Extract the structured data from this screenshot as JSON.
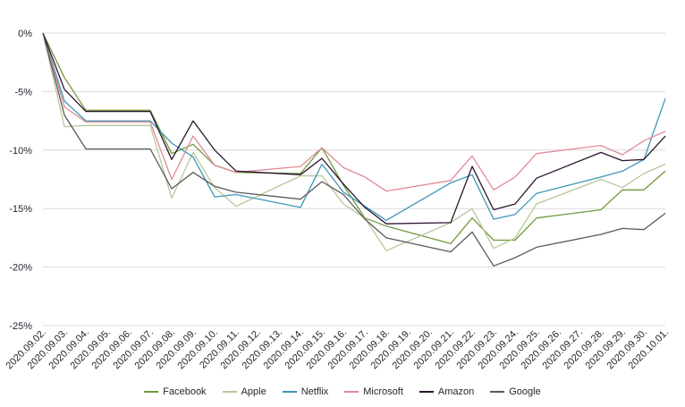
{
  "chart_data": {
    "type": "line",
    "title": "",
    "xlabel": "",
    "ylabel": "",
    "ylim": [
      -25,
      0
    ],
    "yticks": [
      0,
      -5,
      -10,
      -15,
      -20,
      -25
    ],
    "ytick_labels": [
      "0%",
      "-5%",
      "-10%",
      "-15%",
      "-20%",
      "-25%"
    ],
    "grid": "horizontal",
    "legend_position": "bottom",
    "x": [
      "2020.09.02.",
      "2020.09.03.",
      "2020.09.04.",
      "2020.09.05.",
      "2020.09.06.",
      "2020.09.07.",
      "2020.09.08.",
      "2020.09.09.",
      "2020.09.10.",
      "2020.09.11.",
      "2020.09.12.",
      "2020.09.13.",
      "2020.09.14.",
      "2020.09.15.",
      "2020.09.16.",
      "2020.09.17.",
      "2020.09.18.",
      "2020.09.19.",
      "2020.09.20.",
      "2020.09.21.",
      "2020.09.22.",
      "2020.09.23.",
      "2020.09.24.",
      "2020.09.25.",
      "2020.09.26.",
      "2020.09.27.",
      "2020.09.28.",
      "2020.09.29.",
      "2020.09.30.",
      "2020.10.01."
    ],
    "series": [
      {
        "name": "Facebook",
        "color": "#6e9a3c",
        "points": [
          [
            "2020.09.02.",
            0
          ],
          [
            "2020.09.03.",
            -3.8
          ],
          [
            "2020.09.04.",
            -6.6
          ],
          [
            "2020.09.07.",
            -6.6
          ],
          [
            "2020.09.08.",
            -10.3
          ],
          [
            "2020.09.09.",
            -9.5
          ],
          [
            "2020.09.10.",
            -11.3
          ],
          [
            "2020.09.11.",
            -11.9
          ],
          [
            "2020.09.14.",
            -12.0
          ],
          [
            "2020.09.15.",
            -9.8
          ],
          [
            "2020.09.16.",
            -13.0
          ],
          [
            "2020.09.17.",
            -15.8
          ],
          [
            "2020.09.18.",
            -16.5
          ],
          [
            "2020.09.21.",
            -18.0
          ],
          [
            "2020.09.22.",
            -15.8
          ],
          [
            "2020.09.23.",
            -17.7
          ],
          [
            "2020.09.24.",
            -17.7
          ],
          [
            "2020.09.25.",
            -15.8
          ],
          [
            "2020.09.28.",
            -15.1
          ],
          [
            "2020.09.29.",
            -13.4
          ],
          [
            "2020.09.30.",
            -13.4
          ],
          [
            "2020.10.01.",
            -11.8
          ]
        ]
      },
      {
        "name": "Apple",
        "color": "#b8c79a",
        "points": [
          [
            "2020.09.02.",
            0
          ],
          [
            "2020.09.03.",
            -8.0
          ],
          [
            "2020.09.04.",
            -7.9
          ],
          [
            "2020.09.07.",
            -7.9
          ],
          [
            "2020.09.08.",
            -14.1
          ],
          [
            "2020.09.09.",
            -10.2
          ],
          [
            "2020.09.10.",
            -13.2
          ],
          [
            "2020.09.11.",
            -14.8
          ],
          [
            "2020.09.14.",
            -12.2
          ],
          [
            "2020.09.15.",
            -12.2
          ],
          [
            "2020.09.16.",
            -14.6
          ],
          [
            "2020.09.17.",
            -15.8
          ],
          [
            "2020.09.18.",
            -18.6
          ],
          [
            "2020.09.21.",
            -16.2
          ],
          [
            "2020.09.22.",
            -15.0
          ],
          [
            "2020.09.23.",
            -18.4
          ],
          [
            "2020.09.24.",
            -17.5
          ],
          [
            "2020.09.25.",
            -14.6
          ],
          [
            "2020.09.28.",
            -12.5
          ],
          [
            "2020.09.29.",
            -13.2
          ],
          [
            "2020.09.30.",
            -12.0
          ],
          [
            "2020.10.01.",
            -11.2
          ]
        ]
      },
      {
        "name": "Netflix",
        "color": "#3e96b8",
        "points": [
          [
            "2020.09.02.",
            0
          ],
          [
            "2020.09.03.",
            -5.8
          ],
          [
            "2020.09.04.",
            -7.5
          ],
          [
            "2020.09.07.",
            -7.5
          ],
          [
            "2020.09.08.",
            -9.4
          ],
          [
            "2020.09.09.",
            -10.6
          ],
          [
            "2020.09.10.",
            -14.0
          ],
          [
            "2020.09.11.",
            -13.8
          ],
          [
            "2020.09.14.",
            -14.9
          ],
          [
            "2020.09.15.",
            -11.2
          ],
          [
            "2020.09.16.",
            -13.6
          ],
          [
            "2020.09.17.",
            -14.8
          ],
          [
            "2020.09.18.",
            -16.0
          ],
          [
            "2020.09.21.",
            -12.8
          ],
          [
            "2020.09.22.",
            -12.1
          ],
          [
            "2020.09.23.",
            -15.9
          ],
          [
            "2020.09.24.",
            -15.5
          ],
          [
            "2020.09.25.",
            -13.7
          ],
          [
            "2020.09.28.",
            -12.3
          ],
          [
            "2020.09.29.",
            -11.8
          ],
          [
            "2020.09.30.",
            -10.8
          ],
          [
            "2020.10.01.",
            -5.6
          ]
        ]
      },
      {
        "name": "Microsoft",
        "color": "#e08a96",
        "points": [
          [
            "2020.09.02.",
            0
          ],
          [
            "2020.09.03.",
            -6.3
          ],
          [
            "2020.09.04.",
            -7.6
          ],
          [
            "2020.09.07.",
            -7.6
          ],
          [
            "2020.09.08.",
            -12.5
          ],
          [
            "2020.09.09.",
            -8.8
          ],
          [
            "2020.09.10.",
            -11.3
          ],
          [
            "2020.09.11.",
            -11.9
          ],
          [
            "2020.09.14.",
            -11.4
          ],
          [
            "2020.09.15.",
            -9.8
          ],
          [
            "2020.09.16.",
            -11.5
          ],
          [
            "2020.09.17.",
            -12.3
          ],
          [
            "2020.09.18.",
            -13.5
          ],
          [
            "2020.09.21.",
            -12.6
          ],
          [
            "2020.09.22.",
            -10.5
          ],
          [
            "2020.09.23.",
            -13.4
          ],
          [
            "2020.09.24.",
            -12.3
          ],
          [
            "2020.09.25.",
            -10.3
          ],
          [
            "2020.09.28.",
            -9.6
          ],
          [
            "2020.09.29.",
            -10.4
          ],
          [
            "2020.09.30.",
            -9.2
          ],
          [
            "2020.10.01.",
            -8.4
          ]
        ]
      },
      {
        "name": "Amazon",
        "color": "#2c1430",
        "points": [
          [
            "2020.09.02.",
            0
          ],
          [
            "2020.09.03.",
            -4.8
          ],
          [
            "2020.09.04.",
            -6.7
          ],
          [
            "2020.09.07.",
            -6.7
          ],
          [
            "2020.09.08.",
            -10.8
          ],
          [
            "2020.09.09.",
            -7.5
          ],
          [
            "2020.09.10.",
            -10.0
          ],
          [
            "2020.09.11.",
            -11.8
          ],
          [
            "2020.09.14.",
            -12.1
          ],
          [
            "2020.09.15.",
            -10.7
          ],
          [
            "2020.09.16.",
            -12.9
          ],
          [
            "2020.09.17.",
            -14.9
          ],
          [
            "2020.09.18.",
            -16.3
          ],
          [
            "2020.09.21.",
            -16.2
          ],
          [
            "2020.09.22.",
            -11.4
          ],
          [
            "2020.09.23.",
            -15.1
          ],
          [
            "2020.09.24.",
            -14.6
          ],
          [
            "2020.09.25.",
            -12.4
          ],
          [
            "2020.09.28.",
            -10.2
          ],
          [
            "2020.09.29.",
            -10.9
          ],
          [
            "2020.09.30.",
            -10.8
          ],
          [
            "2020.10.01.",
            -8.8
          ]
        ]
      },
      {
        "name": "Google",
        "color": "#5a5a5a",
        "points": [
          [
            "2020.09.02.",
            0
          ],
          [
            "2020.09.03.",
            -7.0
          ],
          [
            "2020.09.04.",
            -9.9
          ],
          [
            "2020.09.07.",
            -9.9
          ],
          [
            "2020.09.08.",
            -13.3
          ],
          [
            "2020.09.09.",
            -11.9
          ],
          [
            "2020.09.10.",
            -13.1
          ],
          [
            "2020.09.11.",
            -13.6
          ],
          [
            "2020.09.14.",
            -14.2
          ],
          [
            "2020.09.15.",
            -12.7
          ],
          [
            "2020.09.16.",
            -13.8
          ],
          [
            "2020.09.17.",
            -15.9
          ],
          [
            "2020.09.18.",
            -17.5
          ],
          [
            "2020.09.21.",
            -18.7
          ],
          [
            "2020.09.22.",
            -17.0
          ],
          [
            "2020.09.23.",
            -19.9
          ],
          [
            "2020.09.24.",
            -19.2
          ],
          [
            "2020.09.25.",
            -18.3
          ],
          [
            "2020.09.28.",
            -17.2
          ],
          [
            "2020.09.29.",
            -16.7
          ],
          [
            "2020.09.30.",
            -16.8
          ],
          [
            "2020.10.01.",
            -15.4
          ]
        ]
      }
    ]
  }
}
